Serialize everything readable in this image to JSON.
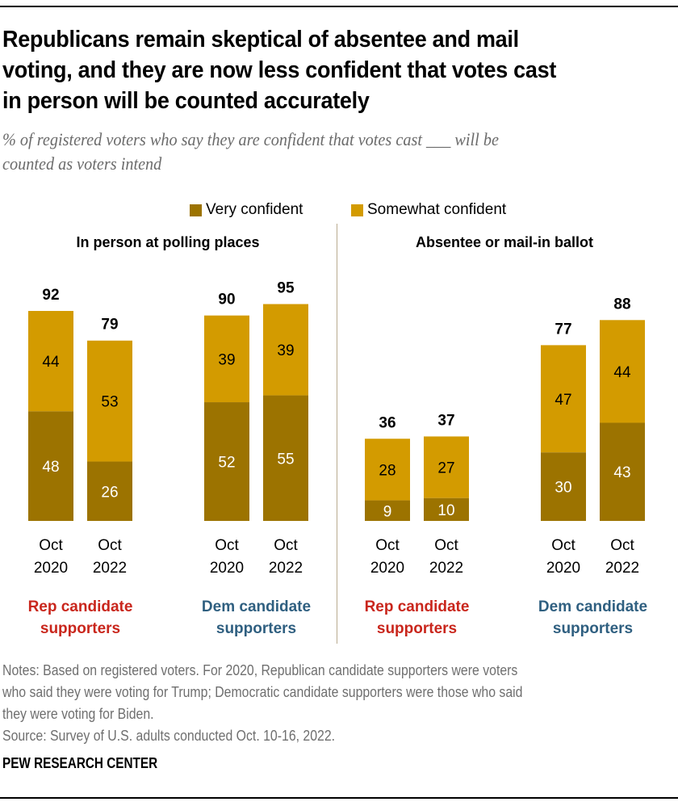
{
  "title_lines": [
    "Republicans remain skeptical of absentee and mail",
    "voting, and they are now less confident that votes cast",
    "in person will be counted accurately"
  ],
  "subtitle_lines": [
    "% of registered voters who say they are confident that votes cast ___ will be",
    "counted as voters intend"
  ],
  "notes_lines": [
    "Notes: Based on registered voters. For 2020, Republican candidate supporters were voters",
    "who said they were voting for Trump; Democratic candidate supporters were those who said",
    "they were voting for Biden.",
    "Source: Survey of U.S. adults conducted Oct. 10-16, 2022."
  ],
  "brand": "PEW RESEARCH CENTER",
  "colors": {
    "very_confident": "#9c7300",
    "somewhat_confident": "#d39b00",
    "rep": "#c9261c",
    "dem": "#2f5f80",
    "divider": "#b9ab8f"
  },
  "chart_data": {
    "type": "bar",
    "stacked": true,
    "title": "Republicans remain skeptical of absentee and mail voting, and they are now less confident that votes cast in person will be counted accurately",
    "subtitle": "% of registered voters who say they are confident that votes cast ___ will be counted as voters intend",
    "legend": [
      "Very confident",
      "Somewhat confident"
    ],
    "legend_position": "top-center",
    "ylim": [
      0,
      100
    ],
    "grid": false,
    "panels": [
      {
        "title": "In person at polling places",
        "groups": [
          {
            "label": [
              "Rep candidate",
              "supporters"
            ],
            "party": "rep",
            "bars": [
              {
                "category": [
                  "Oct",
                  "2020"
                ],
                "very": 48,
                "somewhat": 44,
                "total": 92
              },
              {
                "category": [
                  "Oct",
                  "2022"
                ],
                "very": 26,
                "somewhat": 53,
                "total": 79
              }
            ]
          },
          {
            "label": [
              "Dem candidate",
              "supporters"
            ],
            "party": "dem",
            "bars": [
              {
                "category": [
                  "Oct",
                  "2020"
                ],
                "very": 52,
                "somewhat": 39,
                "total": 90
              },
              {
                "category": [
                  "Oct",
                  "2022"
                ],
                "very": 55,
                "somewhat": 39,
                "total": 95
              }
            ]
          }
        ]
      },
      {
        "title": "Absentee or mail-in ballot",
        "groups": [
          {
            "label": [
              "Rep candidate",
              "supporters"
            ],
            "party": "rep",
            "bars": [
              {
                "category": [
                  "Oct",
                  "2020"
                ],
                "very": 9,
                "somewhat": 28,
                "total": 36
              },
              {
                "category": [
                  "Oct",
                  "2022"
                ],
                "very": 10,
                "somewhat": 27,
                "total": 37
              }
            ]
          },
          {
            "label": [
              "Dem candidate",
              "supporters"
            ],
            "party": "dem",
            "bars": [
              {
                "category": [
                  "Oct",
                  "2020"
                ],
                "very": 30,
                "somewhat": 47,
                "total": 77
              },
              {
                "category": [
                  "Oct",
                  "2022"
                ],
                "very": 43,
                "somewhat": 44,
                "total": 88
              }
            ]
          }
        ]
      }
    ]
  }
}
